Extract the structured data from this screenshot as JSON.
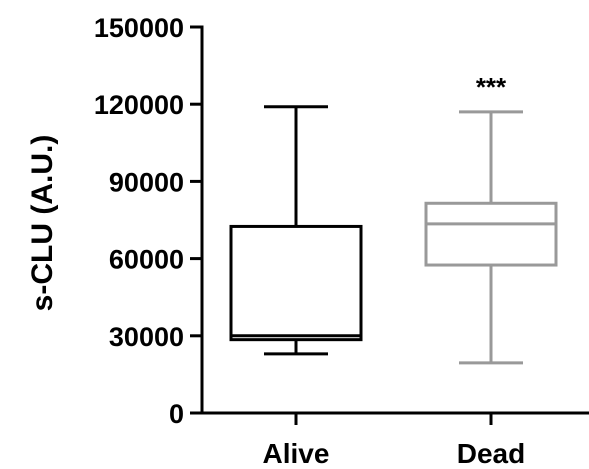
{
  "chart_data": {
    "type": "boxplot",
    "title": "",
    "xlabel": "",
    "ylabel": "s-CLU (A.U.)",
    "ylim": [
      0,
      150000
    ],
    "yticks": [
      "0",
      "30000",
      "60000",
      "90000",
      "120000",
      "150000"
    ],
    "categories": [
      "Alive",
      "Dead"
    ],
    "boxes": [
      {
        "category": "Alive",
        "min": 23000,
        "q1": 28500,
        "median": 30000,
        "q3": 72500,
        "max": 119000,
        "color": "#000000"
      },
      {
        "category": "Dead",
        "min": 19500,
        "q1": 57500,
        "median": 73500,
        "q3": 81500,
        "max": 117000,
        "color": "#999999"
      }
    ],
    "annotations": [
      {
        "category": "Dead",
        "text": "***"
      }
    ],
    "grid": false
  }
}
